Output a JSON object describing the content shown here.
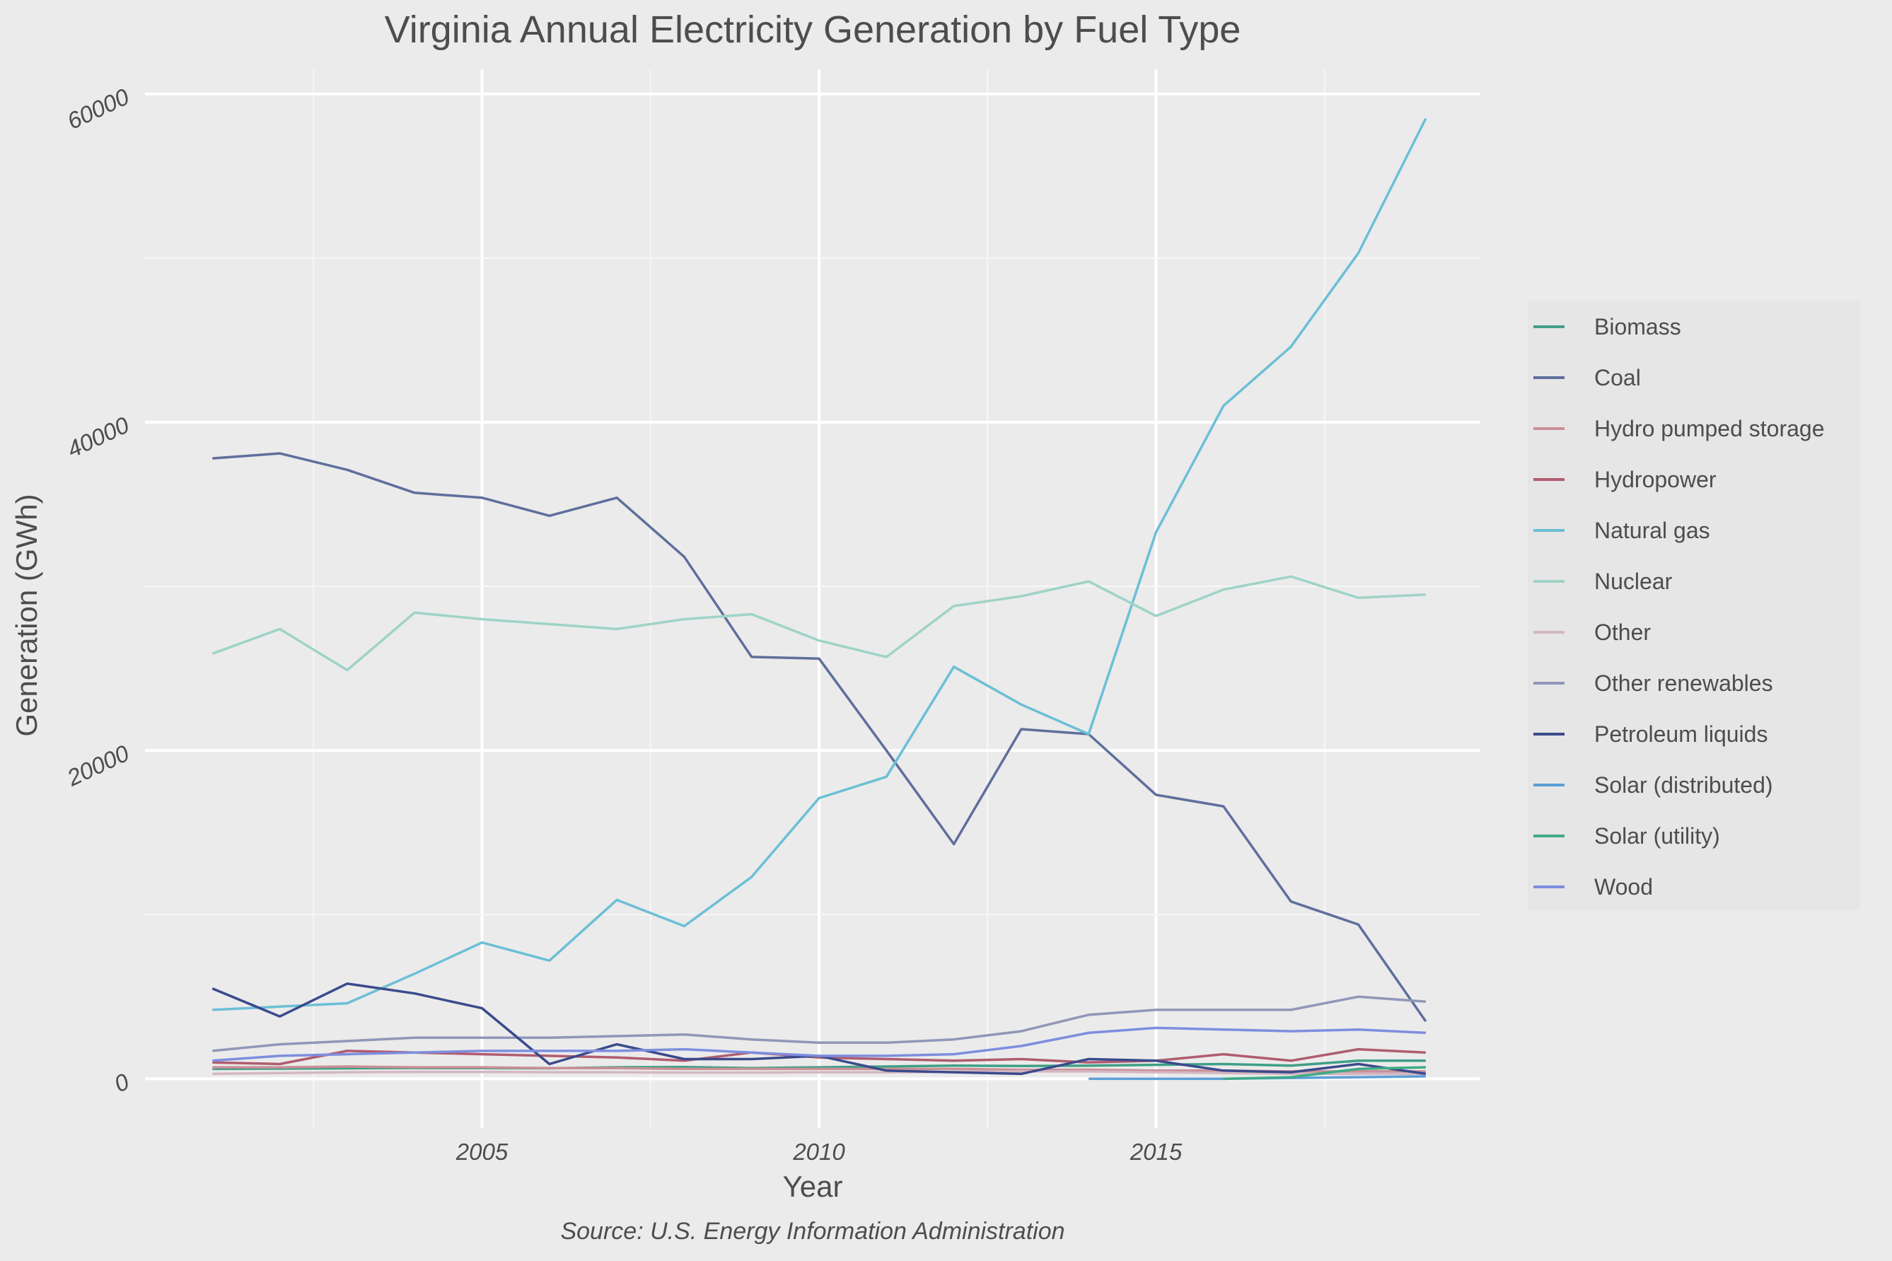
{
  "chart_data": {
    "type": "line",
    "title": "Virginia Annual Electricity Generation by Fuel Type",
    "xlabel": "Year",
    "ylabel": "Generation (GWh)",
    "caption": "Source: U.S. Energy Information Administration",
    "xlim": [
      2000,
      2019.8
    ],
    "ylim": [
      -3000,
      61500
    ],
    "x_ticks": [
      2005,
      2010,
      2015
    ],
    "y_ticks": [
      0,
      20000,
      40000,
      60000
    ],
    "grid": true,
    "legend_position": "right",
    "series": [
      {
        "name": "Biomass",
        "color": "#3f9f86",
        "x": [
          2001,
          2002,
          2003,
          2004,
          2005,
          2006,
          2007,
          2008,
          2009,
          2010,
          2011,
          2012,
          2013,
          2014,
          2015,
          2016,
          2017,
          2018,
          2019
        ],
        "y": [
          600,
          620,
          640,
          660,
          650,
          640,
          700,
          720,
          650,
          700,
          750,
          800,
          780,
          800,
          850,
          900,
          800,
          1100,
          1100
        ]
      },
      {
        "name": "Coal",
        "color": "#5f6f9c",
        "x": [
          2001,
          2002,
          2003,
          2004,
          2005,
          2006,
          2007,
          2008,
          2009,
          2010,
          2011,
          2012,
          2013,
          2014,
          2015,
          2016,
          2017,
          2018,
          2019
        ],
        "y": [
          37800,
          38100,
          37100,
          35700,
          35400,
          34300,
          35400,
          31800,
          25700,
          25600,
          20000,
          14300,
          21300,
          21000,
          17300,
          16600,
          10800,
          9400,
          3500
        ]
      },
      {
        "name": "Hydro pumped storage",
        "color": "#c98f97",
        "x": [
          2001,
          2002,
          2003,
          2004,
          2005,
          2006,
          2007,
          2008,
          2009,
          2010,
          2011,
          2012,
          2013,
          2014,
          2015,
          2016,
          2017,
          2018,
          2019
        ],
        "y": [
          700,
          700,
          750,
          700,
          700,
          650,
          650,
          600,
          600,
          600,
          600,
          600,
          550,
          550,
          500,
          500,
          450,
          450,
          450
        ]
      },
      {
        "name": "Hydropower",
        "color": "#b05c70",
        "x": [
          2001,
          2002,
          2003,
          2004,
          2005,
          2006,
          2007,
          2008,
          2009,
          2010,
          2011,
          2012,
          2013,
          2014,
          2015,
          2016,
          2017,
          2018,
          2019
        ],
        "y": [
          1000,
          900,
          1700,
          1600,
          1500,
          1400,
          1300,
          1100,
          1600,
          1300,
          1200,
          1100,
          1200,
          1000,
          1100,
          1500,
          1100,
          1800,
          1600
        ]
      },
      {
        "name": "Natural gas",
        "color": "#6bbfd6",
        "x": [
          2001,
          2002,
          2003,
          2004,
          2005,
          2006,
          2007,
          2008,
          2009,
          2010,
          2011,
          2012,
          2013,
          2014,
          2015,
          2016,
          2017,
          2018,
          2019
        ],
        "y": [
          4200,
          4400,
          4600,
          6400,
          8300,
          7200,
          10900,
          9300,
          12300,
          17100,
          18400,
          25100,
          22800,
          21000,
          33300,
          41000,
          44600,
          50300,
          58500
        ]
      },
      {
        "name": "Nuclear",
        "color": "#9fd3c7",
        "x": [
          2001,
          2002,
          2003,
          2004,
          2005,
          2006,
          2007,
          2008,
          2009,
          2010,
          2011,
          2012,
          2013,
          2014,
          2015,
          2016,
          2017,
          2018,
          2019
        ],
        "y": [
          25900,
          27400,
          24900,
          28400,
          28000,
          27700,
          27400,
          28000,
          28300,
          26700,
          25700,
          28800,
          29400,
          30300,
          28200,
          29800,
          30600,
          29300,
          29500
        ]
      },
      {
        "name": "Other",
        "color": "#d3b7c2",
        "x": [
          2001,
          2002,
          2003,
          2004,
          2005,
          2006,
          2007,
          2008,
          2009,
          2010,
          2011,
          2012,
          2013,
          2014,
          2015,
          2016,
          2017,
          2018,
          2019
        ],
        "y": [
          300,
          350,
          400,
          420,
          420,
          400,
          400,
          380,
          380,
          400,
          400,
          420,
          450,
          450,
          400,
          350,
          300,
          300,
          300
        ]
      },
      {
        "name": "Other renewables",
        "color": "#9097b8",
        "x": [
          2001,
          2002,
          2003,
          2004,
          2005,
          2006,
          2007,
          2008,
          2009,
          2010,
          2011,
          2012,
          2013,
          2014,
          2015,
          2016,
          2017,
          2018,
          2019
        ],
        "y": [
          1700,
          2100,
          2300,
          2500,
          2500,
          2500,
          2600,
          2700,
          2400,
          2200,
          2200,
          2400,
          2900,
          3900,
          4200,
          4200,
          4200,
          5000,
          4700
        ]
      },
      {
        "name": "Petroleum liquids",
        "color": "#3a4a8c",
        "x": [
          2001,
          2002,
          2003,
          2004,
          2005,
          2006,
          2007,
          2008,
          2009,
          2010,
          2011,
          2012,
          2013,
          2014,
          2015,
          2016,
          2017,
          2018,
          2019
        ],
        "y": [
          5500,
          3800,
          5800,
          5200,
          4300,
          900,
          2100,
          1200,
          1200,
          1400,
          500,
          400,
          300,
          1200,
          1100,
          500,
          400,
          900,
          300
        ]
      },
      {
        "name": "Solar (distributed)",
        "color": "#5b9fd6",
        "x": [
          2014,
          2015,
          2016,
          2017,
          2018,
          2019
        ],
        "y": [
          0,
          0,
          0,
          50,
          100,
          150
        ]
      },
      {
        "name": "Solar (utility)",
        "color": "#3faa84",
        "x": [
          2016,
          2017,
          2018,
          2019
        ],
        "y": [
          0,
          100,
          600,
          700
        ]
      },
      {
        "name": "Wood",
        "color": "#7d8ede",
        "x": [
          2001,
          2002,
          2003,
          2004,
          2005,
          2006,
          2007,
          2008,
          2009,
          2010,
          2011,
          2012,
          2013,
          2014,
          2015,
          2016,
          2017,
          2018,
          2019
        ],
        "y": [
          1100,
          1400,
          1500,
          1600,
          1700,
          1700,
          1700,
          1800,
          1600,
          1400,
          1400,
          1500,
          2000,
          2800,
          3100,
          3000,
          2900,
          3000,
          2800
        ]
      }
    ]
  }
}
